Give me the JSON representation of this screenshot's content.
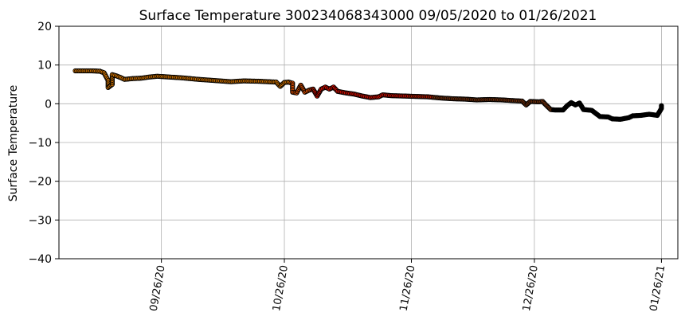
{
  "chart_data": {
    "type": "scatter",
    "title": "Surface Temperature 300234068343000  09/05/2020 to 01/26/2021",
    "xlabel": "",
    "ylabel": "Surface Temperature",
    "xlim": [
      "2020-09-01",
      "2021-01-30"
    ],
    "ylim": [
      -40,
      20
    ],
    "yticks": [
      -40,
      -30,
      -20,
      -10,
      0,
      10,
      20
    ],
    "ytick_labels": [
      "−40",
      "−30",
      "−20",
      "−10",
      "0",
      "10",
      "20"
    ],
    "xticks": [
      "2020-09-26",
      "2020-10-26",
      "2020-11-26",
      "2020-12-26",
      "2021-01-26"
    ],
    "xtick_labels": [
      "09/26/20",
      "10/26/20",
      "11/26/20",
      "12/26/20",
      "01/26/21"
    ],
    "grid": true,
    "legend": "none",
    "colors": {
      "orange": "#ff8c00",
      "orange_red": "#ff5a00",
      "red": "#ff1000",
      "dark_red": "#d82000",
      "brown": "#8b3a0e",
      "black": "#000000"
    },
    "points": [
      {
        "x": "2020-09-05",
        "y": 8.5,
        "c": "orange"
      },
      {
        "x": "2020-09-07",
        "y": 8.5,
        "c": "orange"
      },
      {
        "x": "2020-09-09",
        "y": 8.5,
        "c": "orange"
      },
      {
        "x": "2020-09-11",
        "y": 8.4,
        "c": "orange"
      },
      {
        "x": "2020-09-12",
        "y": 8.0,
        "c": "orange"
      },
      {
        "x": "2020-09-13",
        "y": 6.0,
        "c": "orange"
      },
      {
        "x": "2020-09-13",
        "y": 4.2,
        "c": "orange"
      },
      {
        "x": "2020-09-14",
        "y": 5.0,
        "c": "orange"
      },
      {
        "x": "2020-09-14",
        "y": 7.5,
        "c": "orange"
      },
      {
        "x": "2020-09-15",
        "y": 7.2,
        "c": "orange"
      },
      {
        "x": "2020-09-16",
        "y": 6.8,
        "c": "orange"
      },
      {
        "x": "2020-09-17",
        "y": 6.3,
        "c": "orange"
      },
      {
        "x": "2020-09-19",
        "y": 6.5,
        "c": "orange"
      },
      {
        "x": "2020-09-21",
        "y": 6.6,
        "c": "orange"
      },
      {
        "x": "2020-09-23",
        "y": 6.9,
        "c": "orange"
      },
      {
        "x": "2020-09-25",
        "y": 7.1,
        "c": "orange"
      },
      {
        "x": "2020-09-28",
        "y": 6.9,
        "c": "orange"
      },
      {
        "x": "2020-10-01",
        "y": 6.7,
        "c": "orange"
      },
      {
        "x": "2020-10-05",
        "y": 6.3,
        "c": "orange"
      },
      {
        "x": "2020-10-09",
        "y": 6.0,
        "c": "orange"
      },
      {
        "x": "2020-10-13",
        "y": 5.7,
        "c": "orange"
      },
      {
        "x": "2020-10-16",
        "y": 5.9,
        "c": "orange"
      },
      {
        "x": "2020-10-20",
        "y": 5.8,
        "c": "orange"
      },
      {
        "x": "2020-10-24",
        "y": 5.6,
        "c": "orange"
      },
      {
        "x": "2020-10-25",
        "y": 4.5,
        "c": "orange"
      },
      {
        "x": "2020-10-26",
        "y": 5.5,
        "c": "orange"
      },
      {
        "x": "2020-10-27",
        "y": 5.6,
        "c": "orange"
      },
      {
        "x": "2020-10-28",
        "y": 5.3,
        "c": "orange_red"
      },
      {
        "x": "2020-10-28",
        "y": 3.0,
        "c": "orange_red"
      },
      {
        "x": "2020-10-29",
        "y": 2.8,
        "c": "orange_red"
      },
      {
        "x": "2020-10-30",
        "y": 4.8,
        "c": "orange_red"
      },
      {
        "x": "2020-10-31",
        "y": 3.0,
        "c": "orange_red"
      },
      {
        "x": "2020-11-01",
        "y": 3.5,
        "c": "orange_red"
      },
      {
        "x": "2020-11-02",
        "y": 3.8,
        "c": "dark_red"
      },
      {
        "x": "2020-11-03",
        "y": 2.0,
        "c": "red"
      },
      {
        "x": "2020-11-04",
        "y": 3.8,
        "c": "red"
      },
      {
        "x": "2020-11-05",
        "y": 4.3,
        "c": "red"
      },
      {
        "x": "2020-11-06",
        "y": 3.8,
        "c": "red"
      },
      {
        "x": "2020-11-07",
        "y": 4.3,
        "c": "red"
      },
      {
        "x": "2020-11-08",
        "y": 3.2,
        "c": "red"
      },
      {
        "x": "2020-11-10",
        "y": 2.8,
        "c": "red"
      },
      {
        "x": "2020-11-12",
        "y": 2.5,
        "c": "red"
      },
      {
        "x": "2020-11-14",
        "y": 2.0,
        "c": "red"
      },
      {
        "x": "2020-11-16",
        "y": 1.6,
        "c": "red"
      },
      {
        "x": "2020-11-18",
        "y": 1.8,
        "c": "red"
      },
      {
        "x": "2020-11-19",
        "y": 2.3,
        "c": "red"
      },
      {
        "x": "2020-11-21",
        "y": 2.1,
        "c": "red"
      },
      {
        "x": "2020-11-24",
        "y": 2.0,
        "c": "red"
      },
      {
        "x": "2020-11-27",
        "y": 1.9,
        "c": "dark_red"
      },
      {
        "x": "2020-11-30",
        "y": 1.8,
        "c": "dark_red"
      },
      {
        "x": "2020-12-03",
        "y": 1.5,
        "c": "brown"
      },
      {
        "x": "2020-12-06",
        "y": 1.3,
        "c": "brown"
      },
      {
        "x": "2020-12-09",
        "y": 1.2,
        "c": "brown"
      },
      {
        "x": "2020-12-12",
        "y": 1.0,
        "c": "brown"
      },
      {
        "x": "2020-12-15",
        "y": 1.1,
        "c": "brown"
      },
      {
        "x": "2020-12-18",
        "y": 1.0,
        "c": "brown"
      },
      {
        "x": "2020-12-21",
        "y": 0.8,
        "c": "brown"
      },
      {
        "x": "2020-12-23",
        "y": 0.7,
        "c": "brown"
      },
      {
        "x": "2020-12-24",
        "y": -0.3,
        "c": "brown"
      },
      {
        "x": "2020-12-25",
        "y": 0.6,
        "c": "brown"
      },
      {
        "x": "2020-12-27",
        "y": 0.5,
        "c": "brown"
      },
      {
        "x": "2020-12-28",
        "y": 0.6,
        "c": "brown"
      },
      {
        "x": "2020-12-29",
        "y": -0.5,
        "c": "brown"
      },
      {
        "x": "2020-12-30",
        "y": -1.5,
        "c": "brown"
      },
      {
        "x": "2020-12-31",
        "y": -1.6,
        "c": "black"
      },
      {
        "x": "2021-01-02",
        "y": -1.6,
        "c": "black"
      },
      {
        "x": "2021-01-03",
        "y": -0.5,
        "c": "black"
      },
      {
        "x": "2021-01-04",
        "y": 0.3,
        "c": "black"
      },
      {
        "x": "2021-01-05",
        "y": -0.3,
        "c": "black"
      },
      {
        "x": "2021-01-06",
        "y": 0.2,
        "c": "black"
      },
      {
        "x": "2021-01-07",
        "y": -1.5,
        "c": "black"
      },
      {
        "x": "2021-01-09",
        "y": -1.7,
        "c": "black"
      },
      {
        "x": "2021-01-10",
        "y": -2.5,
        "c": "black"
      },
      {
        "x": "2021-01-11",
        "y": -3.3,
        "c": "black"
      },
      {
        "x": "2021-01-13",
        "y": -3.4,
        "c": "black"
      },
      {
        "x": "2021-01-14",
        "y": -3.9,
        "c": "black"
      },
      {
        "x": "2021-01-16",
        "y": -4.0,
        "c": "black"
      },
      {
        "x": "2021-01-18",
        "y": -3.6,
        "c": "black"
      },
      {
        "x": "2021-01-19",
        "y": -3.1,
        "c": "black"
      },
      {
        "x": "2021-01-21",
        "y": -3.0,
        "c": "black"
      },
      {
        "x": "2021-01-23",
        "y": -2.7,
        "c": "black"
      },
      {
        "x": "2021-01-25",
        "y": -3.0,
        "c": "black"
      },
      {
        "x": "2021-01-26",
        "y": -1.2,
        "c": "black"
      },
      {
        "x": "2021-01-26",
        "y": -0.5,
        "c": "black"
      }
    ]
  }
}
